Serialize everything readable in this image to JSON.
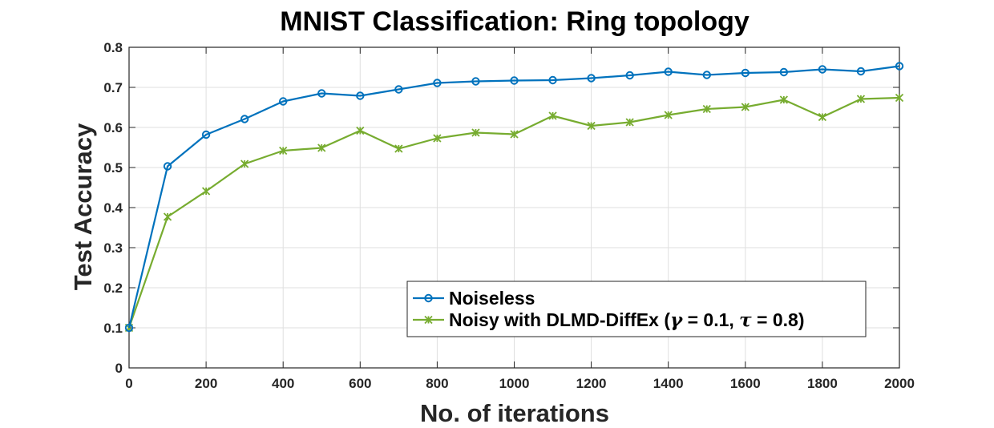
{
  "chart_data": {
    "type": "line",
    "title": "MNIST Classification: Ring topology",
    "xlabel": "No. of iterations",
    "ylabel": "Test Accuracy",
    "xlim": [
      0,
      2000
    ],
    "ylim": [
      0,
      0.8
    ],
    "xticks": [
      "0",
      "200",
      "400",
      "600",
      "800",
      "1000",
      "1200",
      "1400",
      "1600",
      "1800",
      "2000"
    ],
    "yticks": [
      "0",
      "0.1",
      "0.2",
      "0.3",
      "0.4",
      "0.5",
      "0.6",
      "0.7",
      "0.8"
    ],
    "grid": true,
    "legend_position": "bottom-right",
    "x": [
      0,
      100,
      200,
      300,
      400,
      500,
      600,
      700,
      800,
      900,
      1000,
      1100,
      1200,
      1300,
      1400,
      1500,
      1600,
      1700,
      1800,
      1900,
      2000
    ],
    "series": [
      {
        "name": "Noiseless",
        "color": "#0072bd",
        "marker": "circle",
        "values": [
          0.1,
          0.503,
          0.582,
          0.621,
          0.665,
          0.685,
          0.679,
          0.695,
          0.711,
          0.715,
          0.717,
          0.718,
          0.723,
          0.73,
          0.739,
          0.731,
          0.736,
          0.738,
          0.745,
          0.74,
          0.753
        ]
      },
      {
        "name": "Noisy with DLMD-DiffEx (γ = 0.1, τ = 0.8)",
        "color": "#77ac30",
        "marker": "x-star",
        "values": [
          0.1,
          0.377,
          0.441,
          0.509,
          0.542,
          0.549,
          0.592,
          0.547,
          0.573,
          0.587,
          0.583,
          0.629,
          0.604,
          0.613,
          0.631,
          0.646,
          0.651,
          0.669,
          0.626,
          0.671,
          0.674
        ]
      }
    ]
  }
}
